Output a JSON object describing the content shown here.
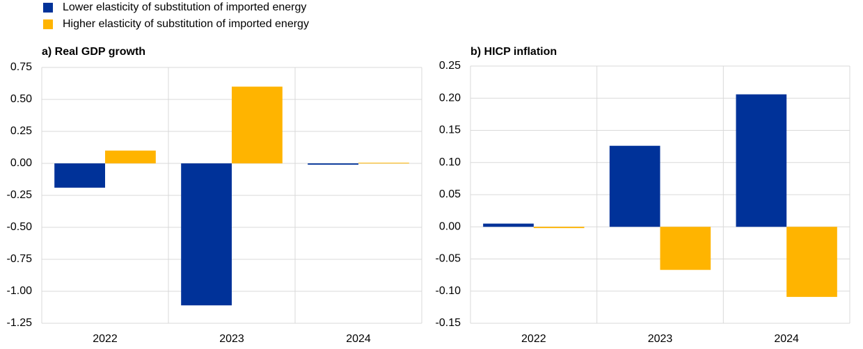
{
  "legend": [
    {
      "name": "Lower elasticity of substitution of imported energy",
      "color": "#003299"
    },
    {
      "name": "Higher elasticity of substitution of imported energy",
      "color": "#ffb400"
    }
  ],
  "chart_data": [
    {
      "type": "bar",
      "title": "a) Real GDP growth",
      "categories": [
        "2022",
        "2023",
        "2024"
      ],
      "series": [
        {
          "color": "#003299",
          "values": [
            -0.19,
            -1.11,
            -0.01
          ]
        },
        {
          "color": "#ffb400",
          "values": [
            0.1,
            0.6,
            0.005
          ]
        }
      ],
      "ylim": [
        -1.25,
        0.75
      ],
      "yticks": [
        {
          "value": -1.25,
          "label": "-1.25"
        },
        {
          "value": -1,
          "label": "-1.00"
        },
        -0.75,
        {
          "value": -0.5,
          "label": "-0.50"
        },
        -0.25,
        {
          "value": 0,
          "label": "0.00"
        },
        0.25,
        {
          "value": 0.5,
          "label": "0.50"
        },
        0.75
      ],
      "grid": true
    },
    {
      "type": "bar",
      "title": "b) HICP inflation",
      "categories": [
        "2022",
        "2023",
        "2024"
      ],
      "series": [
        {
          "color": "#003299",
          "values": [
            0.005,
            0.126,
            0.206
          ]
        },
        {
          "color": "#ffb400",
          "values": [
            -0.002,
            -0.067,
            -0.109
          ]
        }
      ],
      "ylim": [
        -0.15,
        0.25
      ],
      "yticks": [
        -0.15,
        {
          "value": -0.1,
          "label": "-0.10"
        },
        -0.05,
        {
          "value": 0,
          "label": "0.00"
        },
        0.05,
        {
          "value": 0.1,
          "label": "0.10"
        },
        0.15,
        {
          "value": 0.2,
          "label": "0.20"
        },
        0.25
      ],
      "grid": true
    }
  ]
}
